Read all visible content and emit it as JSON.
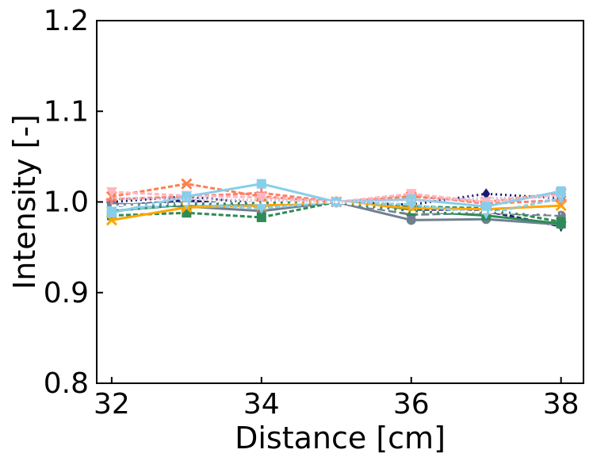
{
  "chart_data": {
    "type": "line",
    "title": "",
    "xlabel": "Distance [cm]",
    "ylabel": "Intensity [-]",
    "xlim": [
      31.8,
      38.3
    ],
    "ylim": [
      0.8,
      1.2
    ],
    "x_ticks": [
      32,
      34,
      36,
      38
    ],
    "y_ticks": [
      0.8,
      0.9,
      1.0,
      1.1,
      1.2
    ],
    "x_tick_labels": [
      "32",
      "34",
      "36",
      "38"
    ],
    "y_tick_labels": [
      "0.8",
      "0.9",
      "1.0",
      "1.1",
      "1.2"
    ],
    "grid": false,
    "x": [
      32,
      33,
      34,
      35,
      36,
      37,
      38
    ],
    "series": [
      {
        "color": "#191970",
        "dash": "2,4",
        "marker": "diamond",
        "values": [
          1.0,
          1.006,
          0.998,
          1.0,
          0.997,
          1.009,
          1.004
        ]
      },
      {
        "color": "#191970",
        "dash": "6,3",
        "marker": "triangle-down",
        "values": [
          0.995,
          1.002,
          0.994,
          1.0,
          0.992,
          0.99,
          0.973
        ]
      },
      {
        "color": "#708090",
        "dash": "",
        "marker": "circle",
        "values": [
          0.998,
          0.995,
          0.99,
          1.0,
          0.98,
          0.981,
          0.975
        ]
      },
      {
        "color": "#708090",
        "dash": "10,4",
        "marker": "circle",
        "values": [
          0.997,
          0.999,
          0.996,
          1.0,
          0.986,
          0.988,
          0.985
        ]
      },
      {
        "color": "#2e8b57",
        "dash": "6,3",
        "marker": "square",
        "values": [
          0.985,
          0.988,
          0.983,
          1.0,
          0.995,
          0.993,
          0.978
        ]
      },
      {
        "color": "#2e8b57",
        "dash": "",
        "marker": "square",
        "values": [
          0.99,
          0.997,
          0.999,
          1.0,
          0.99,
          0.985,
          0.976
        ]
      },
      {
        "color": "#ffa500",
        "dash": "",
        "marker": "x",
        "values": [
          0.98,
          0.994,
          0.996,
          1.0,
          0.993,
          0.992,
          0.996
        ]
      },
      {
        "color": "#ff7f50",
        "dash": "6,3",
        "marker": "x",
        "values": [
          1.006,
          1.02,
          1.006,
          1.0,
          1.006,
          1.0,
          1.01
        ]
      },
      {
        "color": "#fa8072",
        "dash": "6,3",
        "marker": "plus",
        "values": [
          1.003,
          1.006,
          1.01,
          1.0,
          1.008,
          0.998,
          1.002
        ]
      },
      {
        "color": "#ffb6c1",
        "dash": "6,3",
        "marker": "triangle-down",
        "values": [
          1.011,
          1.007,
          1.005,
          1.0,
          1.009,
          1.0,
          1.008
        ]
      },
      {
        "color": "#87ceeb",
        "dash": "",
        "marker": "square",
        "values": [
          0.988,
          1.006,
          1.02,
          1.0,
          1.003,
          0.995,
          1.012
        ]
      },
      {
        "color": "#87ceeb",
        "dash": "6,3",
        "marker": "triangle-down",
        "values": [
          0.99,
          0.998,
          0.993,
          1.0,
          0.997,
          0.987,
          1.004
        ]
      },
      {
        "color": "#ffffff",
        "dash": "6,3",
        "marker": "none",
        "values": [
          0.996,
          0.998,
          0.999,
          1.0,
          0.989,
          0.989,
          0.987
        ]
      },
      {
        "color": "#d8bfd8",
        "dash": "2,3",
        "marker": "none",
        "values": [
          1.004,
          1.003,
          1.002,
          1.0,
          1.002,
          1.004,
          1.006
        ]
      }
    ]
  }
}
